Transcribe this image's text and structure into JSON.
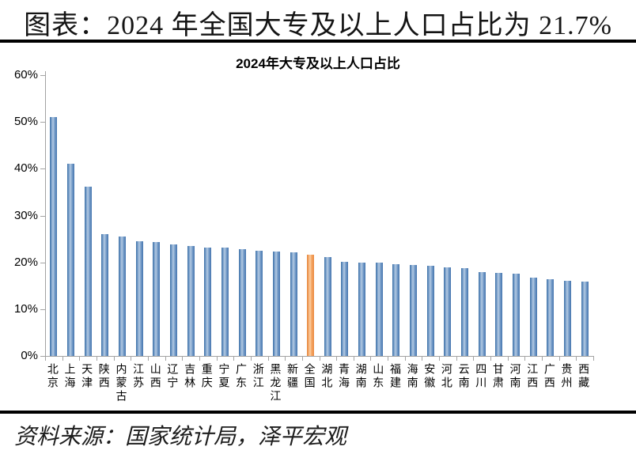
{
  "page": {
    "title": "图表：2024 年全国大专及以上人口占比为 21.7%",
    "source": "资料来源：国家统计局，泽平宏观"
  },
  "chart_data": {
    "type": "bar",
    "title": "2024年大专及以上人口占比",
    "categories": [
      "北京",
      "上海",
      "天津",
      "陕西",
      "内蒙古",
      "江苏",
      "山西",
      "辽宁",
      "吉林",
      "重庆",
      "宁夏",
      "广东",
      "浙江",
      "黑龙江",
      "新疆",
      "全国",
      "湖北",
      "青海",
      "湖南",
      "山东",
      "福建",
      "海南",
      "安徽",
      "河北",
      "云南",
      "四川",
      "甘肃",
      "河南",
      "江西",
      "广西",
      "贵州",
      "西藏"
    ],
    "values": [
      51.0,
      41.0,
      36.2,
      26.1,
      25.5,
      24.5,
      24.3,
      23.8,
      23.5,
      23.2,
      23.1,
      22.8,
      22.4,
      22.3,
      22.2,
      21.7,
      21.1,
      20.1,
      20.0,
      20.0,
      19.6,
      19.5,
      19.2,
      18.9,
      18.7,
      18.0,
      17.8,
      17.5,
      16.8,
      16.4,
      16.0,
      15.9
    ],
    "highlight_category": "全国",
    "highlight_value": 21.7,
    "unit": "%",
    "ylim": [
      0,
      60
    ],
    "ytick_step": 10,
    "yticks": [
      "0%",
      "10%",
      "20%",
      "30%",
      "40%",
      "50%",
      "60%"
    ],
    "xlabel": "",
    "ylabel": "",
    "grid": false,
    "legend": false,
    "colors": {
      "bar_blue": "#4f81bd",
      "bar_blue_light": "#b5cbe3",
      "bar_orange": "#f79646",
      "bar_orange_light": "#fcd0a6",
      "axis": "#a3a3a3",
      "text": "#000000"
    }
  }
}
